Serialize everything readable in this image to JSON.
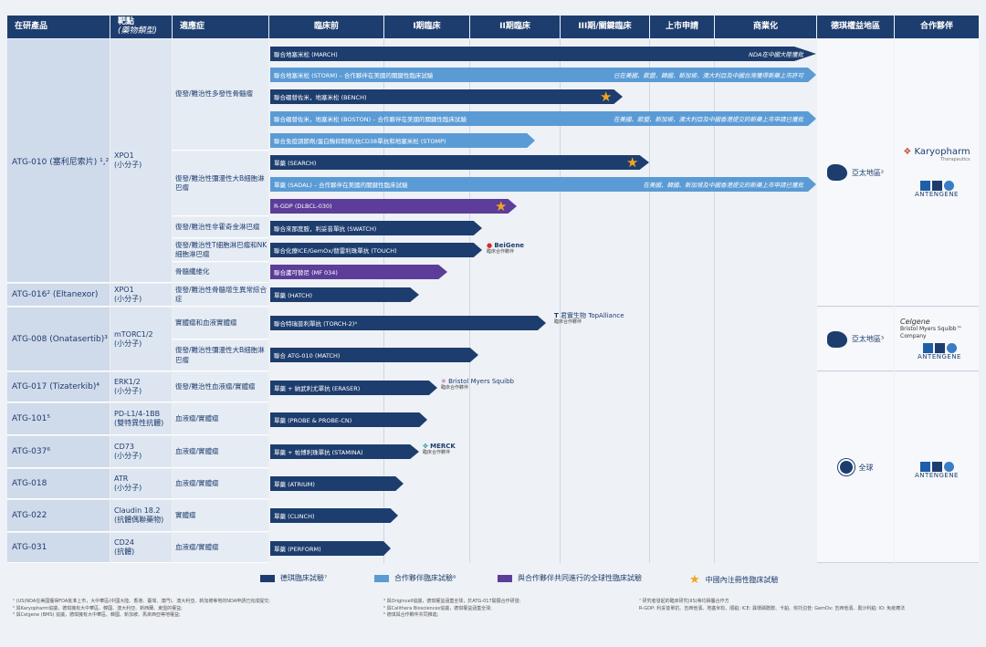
{
  "header": {
    "product": "在研產品",
    "target": "靶點",
    "target_sub": "(藥物類型)",
    "indication": "適應症",
    "phases": [
      "臨床前",
      "I期臨床",
      "II期臨床",
      "III期/關鍵臨床",
      "上市申請",
      "商業化"
    ],
    "region": "德琪權益地區",
    "partner": "合作夥伴"
  },
  "products": [
    {
      "name": "ATG-010 (塞利尼索片) ¹,²",
      "target": "XPO1\n(小分子)"
    },
    {
      "name": "ATG-016² (Eltanexor)",
      "target": "XPO1\n(小分子)"
    },
    {
      "name": "ATG-008 (Onatasertib)³",
      "target": "mTORC1/2\n(小分子)"
    },
    {
      "name": "ATG-017 (Tizaterkib)⁴",
      "target": "ERK1/2\n(小分子)"
    },
    {
      "name": "ATG-101⁵",
      "target": "PD-L1/4-1BB\n(雙特異性抗體)"
    },
    {
      "name": "ATG-037⁶",
      "target": "CD73\n(小分子)"
    },
    {
      "name": "ATG-018",
      "target": "ATR\n(小分子)"
    },
    {
      "name": "ATG-022",
      "target": "Claudin 18.2\n(抗體偶聯藥物)"
    },
    {
      "name": "ATG-031",
      "target": "CD24\n(抗體)"
    }
  ],
  "indications": [
    "復發/難治性多發性骨髓瘤",
    "復發/難治性彌漫性大B細胞淋巴瘤",
    "復發/難治性非霍奇金淋巴瘤",
    "復發/難治性T細胞淋巴瘤和NK細胞淋巴瘤",
    "骨髓纖維化",
    "復發/難治性骨髓增生異常綜合症",
    "實體瘤和血液實體瘤",
    "復發/難治性彌漫性大B細胞淋巴瘤",
    "復發/難治性血液瘤/實體瘤",
    "血液瘤/實體瘤",
    "血液瘤/實體瘤",
    "血液瘤/實體瘤",
    "實體瘤",
    "血液瘤/實體瘤"
  ],
  "bars": [
    {
      "label": "聯合地塞米松 (MARCH)",
      "note": "NDA在中國大陸獲批"
    },
    {
      "label": "聯合地塞米松 (STORM) – 合作夥伴在美國的關鍵性臨床試驗",
      "note": "已在美國、歐盟、韓國、新加坡、澳大利亞及中國台灣獲得新藥上市許可"
    },
    {
      "label": "聯合硼替佐米，地塞米松 (BENCH)",
      "note": ""
    },
    {
      "label": "聯合硼替佐米，地塞米松 (BOSTON) – 合作夥伴在美國的關鍵性臨床試驗",
      "note": "在美國、歐盟、新加坡、澳大利亞及中國香港提交的新藥上市申請已獲批"
    },
    {
      "label": "聯合免疫調節劑/蛋白酶抑制劑/抗CD38單抗和地塞米松 (STOMP)",
      "note": ""
    },
    {
      "label": "單藥 (SEARCH)",
      "note": ""
    },
    {
      "label": "單藥 (SADAL) – 合作夥伴在美國的關鍵性臨床試驗",
      "note": "在美國、韓國、新加坡及中國香港提交的新藥上市申請已獲批"
    },
    {
      "label": "R-GDP (DLBCL-030)",
      "note": ""
    },
    {
      "label": "聯合來那度胺，利妥昔單抗 (SWATCH)",
      "note": ""
    },
    {
      "label": "聯合化療ICE/GemOx/替雷利珠單抗 (TOUCH)",
      "note": ""
    },
    {
      "label": "聯合蘆可替尼 (MF 034)",
      "note": ""
    },
    {
      "label": "單藥 (HATCH)",
      "note": ""
    },
    {
      "label": "聯合特瑞普利單抗 (TORCH-2)⁴",
      "note": ""
    },
    {
      "label": "聯合 ATG-010 (MATCH)",
      "note": ""
    },
    {
      "label": "單藥 + 納武利尤單抗 (ERASER)",
      "note": ""
    },
    {
      "label": "單藥 (PROBE & PROBE-CN)",
      "note": ""
    },
    {
      "label": "單藥 + 帕博利珠單抗 (STAMINA)",
      "note": ""
    },
    {
      "label": "單藥 (ATRIUM)",
      "note": ""
    },
    {
      "label": "單藥 (CLINCH)",
      "note": ""
    },
    {
      "label": "單藥 (PERFORM)",
      "note": ""
    }
  ],
  "regions": {
    "asia": "亞太地區²",
    "asia2": "亞太地區³",
    "global": "全球"
  },
  "partners": {
    "karyopharm": "Karyopharm",
    "karyopharm_sub": "Therapeutics",
    "antengene": "ANTENGENE",
    "celgene": "Celgene",
    "bms": "Bristol Myers Squibb™ Company",
    "beigene": "BeiGene",
    "beigene_sub": "臨床合作夥伴",
    "topalliance": "君實生物 TopAlliance",
    "topalliance_sub": "臨床合作夥伴",
    "bms2": "Bristol Myers Squibb",
    "bms2_sub": "臨床合作夥伴",
    "merck": "MERCK",
    "merck_sub": "臨床合作夥伴"
  },
  "legend": {
    "l1": "德琪臨床試驗⁷",
    "l2": "合作夥伴臨床試驗⁸",
    "l3": "與合作夥伴共同進行的全球性臨床試驗",
    "l4": "中國內注冊性臨床試驗"
  },
  "colors": {
    "dark": "#1d3d6e",
    "light": "#5b9bd5",
    "purple": "#5c3d99",
    "star": "#f2a41f"
  },
  "footnotes": {
    "f1": "¹ (US)NDA在美國獲得FDA批准上市，大中華區(中國大陸、香港、臺灣、澳門)、澳大利亞、新加坡等地的NDA申請已完成提交;",
    "f2": "² 與Karyopharm協議，德琪擁有大中華區、韓國、澳大利亞、新西蘭、東盟的權益;",
    "f3": "³ 與Celgene (BMS) 協議，德琪擁有大中華區、韓國、新加坡、馬來西亞等地權益;",
    "f4": "⁴ 與Origincell協議，德琪權益涵蓋全球，於ATG-017開展合作研發;",
    "f5": "⁵ 與Calithera Biosciences協議，德琪權益涵蓋全球;",
    "f6": "⁶ 德琪與合作夥伴共同推進;",
    "f7": "⁷ 研究者發起的臨床研究(IIS)等均歸屬合作方",
    "f8": "R-GDP: 利妥昔單抗、吉西他濱、地塞米松、順鉑; ICE: 異環磷酰胺、卡鉑、依托泊苷; GemOx: 吉西他濱、奧沙利鉑; IO: 免疫療法"
  }
}
